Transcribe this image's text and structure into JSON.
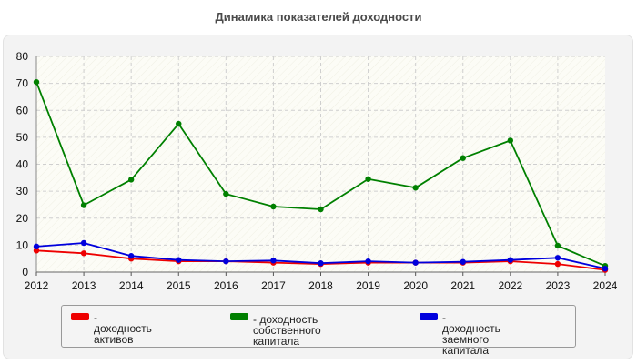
{
  "chart_data": {
    "type": "line",
    "title": "Динамика показателей доходности",
    "x": [
      "2012",
      "2013",
      "2014",
      "2015",
      "2016",
      "2017",
      "2018",
      "2019",
      "2020",
      "2021",
      "2022",
      "2023",
      "2024"
    ],
    "ylim": [
      0,
      80
    ],
    "yticks": [
      0,
      10,
      20,
      30,
      40,
      50,
      60,
      70,
      80
    ],
    "grid": true,
    "legend_position": "bottom",
    "series": [
      {
        "name": "- доходность активов",
        "color": "#ee0000",
        "values": [
          8.0,
          7.0,
          5.0,
          4.0,
          4.0,
          3.5,
          3.0,
          3.5,
          3.5,
          3.5,
          4.0,
          3.0,
          0.8
        ]
      },
      {
        "name": "- доходность собственного капитала",
        "color": "#008000",
        "values": [
          70.5,
          24.8,
          34.3,
          55.0,
          29.0,
          24.3,
          23.3,
          34.5,
          31.3,
          42.3,
          48.8,
          9.8,
          2.3
        ]
      },
      {
        "name": "- доходность заемного капитала",
        "color": "#0000dd",
        "values": [
          9.5,
          10.8,
          6.0,
          4.5,
          4.0,
          4.3,
          3.3,
          4.0,
          3.5,
          3.8,
          4.5,
          5.3,
          1.3
        ]
      }
    ]
  },
  "legend": {
    "item1_line1": "- доходность активов",
    "item2_line1": "- доходность собственного",
    "item2_line2": "капитала",
    "item3_line1": "- доходность заемного",
    "item3_line2": "капитала"
  }
}
